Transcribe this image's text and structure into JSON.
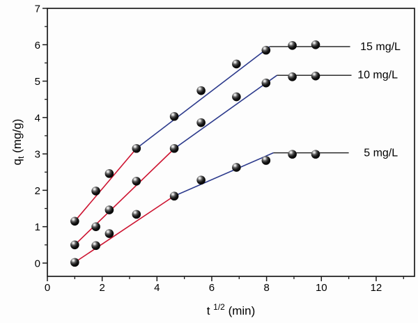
{
  "figure": {
    "background": "#fdfdfd",
    "description": "Intraparticle diffusion plot of adsorption capacity versus square root of time"
  },
  "chart_data": {
    "type": "scatter",
    "title": "",
    "xlabel": "t 1/2 (min)",
    "xlabel_parts": {
      "base": "t ",
      "sup": "1/2",
      "rest": " (min)"
    },
    "ylabel": "q t (mg/g)",
    "ylabel_parts": {
      "base": "q",
      "sub": "t",
      "rest": " (mg/g)"
    },
    "x_range": [
      0,
      13.4
    ],
    "y_range": [
      -0.365,
      7
    ],
    "x_major_ticks": [
      0,
      2,
      4,
      6,
      8,
      10,
      12
    ],
    "x_minor_ticks": [
      1,
      3,
      5,
      7,
      9,
      11,
      13
    ],
    "y_major_ticks": [
      0,
      1,
      2,
      3,
      4,
      5,
      6,
      7
    ],
    "y_minor_ticks": [
      0.5,
      1.5,
      2.5,
      3.5,
      4.5,
      5.5,
      6.5
    ],
    "grid": false,
    "legend_position": "right, next to plateau lines",
    "x": [
      1.0,
      1.77,
      2.26,
      3.25,
      4.63,
      5.61,
      6.9,
      7.98,
      8.94,
      9.79
    ],
    "series": [
      {
        "name": "15 mg/L",
        "values": [
          1.15,
          1.98,
          2.46,
          3.15,
          4.03,
          4.74,
          5.47,
          5.85,
          5.98,
          6.0
        ],
        "fit_segments": [
          {
            "color_key": "red",
            "from": [
              1.0,
              1.15
            ],
            "to": [
              3.25,
              3.15
            ]
          },
          {
            "color_key": "blue",
            "from": [
              3.25,
              3.15
            ],
            "to": [
              8.12,
              5.95
            ]
          },
          {
            "color_key": "black",
            "from": [
              8.12,
              5.95
            ],
            "to": [
              11.05,
              5.95
            ]
          }
        ],
        "label_anchor": [
          11.42,
          5.96
        ]
      },
      {
        "name": "10 mg/L",
        "values": [
          0.5,
          1.0,
          1.46,
          2.25,
          3.15,
          3.86,
          4.57,
          4.95,
          5.12,
          5.14
        ],
        "fit_segments": [
          {
            "color_key": "red",
            "from": [
              1.0,
              0.5
            ],
            "to": [
              4.64,
              3.15
            ]
          },
          {
            "color_key": "blue",
            "from": [
              4.64,
              3.15
            ],
            "to": [
              8.38,
              5.16
            ]
          },
          {
            "color_key": "black",
            "from": [
              8.38,
              5.16
            ],
            "to": [
              11.1,
              5.16
            ]
          }
        ],
        "label_anchor": [
          11.32,
          5.18
        ]
      },
      {
        "name": "5 mg/L",
        "values": [
          0.02,
          0.48,
          0.81,
          1.34,
          1.84,
          2.28,
          2.63,
          2.82,
          2.99,
          2.99
        ],
        "fit_segments": [
          {
            "color_key": "red",
            "from": [
              1.0,
              0.02
            ],
            "to": [
              4.62,
              1.84
            ]
          },
          {
            "color_key": "blue",
            "from": [
              4.62,
              1.84
            ],
            "to": [
              8.25,
              3.03
            ]
          },
          {
            "color_key": "black",
            "from": [
              8.25,
              3.03
            ],
            "to": [
              11.0,
              3.03
            ]
          }
        ],
        "label_anchor": [
          11.55,
          3.04
        ]
      }
    ],
    "colors": {
      "red": "#cd1330",
      "blue": "#2c3a8c",
      "black": "#1a1a1a",
      "frame": "#1a1a1a",
      "marker": "#000000"
    }
  }
}
